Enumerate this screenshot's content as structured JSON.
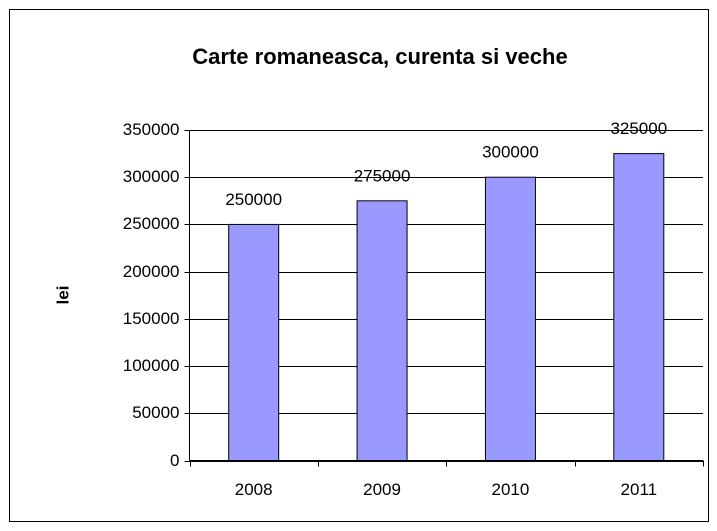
{
  "chart_data": {
    "type": "bar",
    "title": "Carte romaneasca, curenta si veche",
    "y_label": "lei",
    "categories": [
      "2008",
      "2009",
      "2010",
      "2011"
    ],
    "values": [
      250000,
      275000,
      300000,
      325000
    ],
    "color": "#9999ff",
    "ylim": [
      0,
      350000
    ],
    "yticks": [
      0,
      50000,
      100000,
      150000,
      200000,
      250000,
      300000,
      350000
    ],
    "grid": true
  }
}
